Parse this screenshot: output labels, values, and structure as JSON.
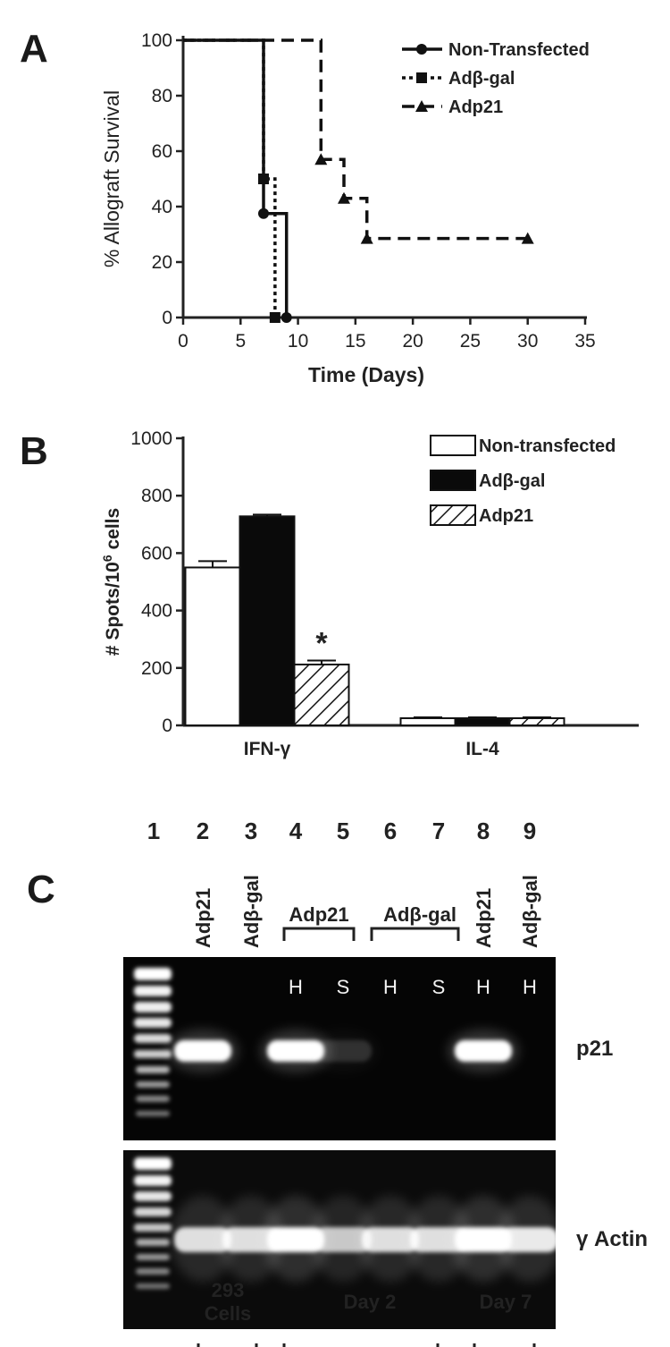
{
  "panels": {
    "A": "A",
    "B": "B",
    "C": "C"
  },
  "chart_data": [
    {
      "panel": "A",
      "type": "line",
      "step": true,
      "xlabel": "Time (Days)",
      "ylabel": "% Allograft Survival",
      "xlim": [
        0,
        35
      ],
      "ylim": [
        0,
        100
      ],
      "xticks": [
        0,
        5,
        10,
        15,
        20,
        25,
        30,
        35
      ],
      "yticks": [
        0,
        20,
        40,
        60,
        80,
        100
      ],
      "legend_position": "top-right",
      "series": [
        {
          "name": "Non-Transfected",
          "marker": "circle",
          "dash": "solid",
          "x": [
            0,
            7,
            9
          ],
          "y": [
            100,
            37.5,
            0
          ],
          "marker_x": [
            7,
            9
          ],
          "marker_y": [
            37.5,
            0
          ]
        },
        {
          "name": "Adβ-gal",
          "marker": "square",
          "dash": "dotted",
          "x": [
            0,
            7,
            8
          ],
          "y": [
            100,
            50,
            0
          ],
          "marker_x": [
            7,
            8
          ],
          "marker_y": [
            50,
            0
          ]
        },
        {
          "name": "Adp21",
          "marker": "triangle",
          "dash": "dashed",
          "x": [
            0,
            12,
            14,
            16,
            30
          ],
          "y": [
            100,
            57,
            43,
            28.5,
            28.5
          ],
          "marker_x": [
            12,
            14,
            16,
            30
          ],
          "marker_y": [
            57,
            43,
            28.5,
            28.5
          ]
        }
      ]
    },
    {
      "panel": "B",
      "type": "bar",
      "ylabel_main": "# Spots/10",
      "ylabel_sup": "6",
      "ylabel_tail": " cells",
      "ylim": [
        0,
        1000
      ],
      "yticks": [
        0,
        200,
        400,
        600,
        800,
        1000
      ],
      "categories": [
        "IFN-γ",
        "IL-4"
      ],
      "legend_position": "top-right",
      "series": [
        {
          "name": "Non-transfected",
          "fill": "white",
          "values": [
            550,
            25
          ],
          "errors": [
            22,
            3
          ]
        },
        {
          "name": "Adβ-gal",
          "fill": "black",
          "values": [
            728,
            25
          ],
          "errors": [
            6,
            3
          ]
        },
        {
          "name": "Adp21",
          "fill": "hatch",
          "values": [
            212,
            25
          ],
          "errors": [
            14,
            3
          ]
        }
      ],
      "annotations": [
        {
          "text": "*",
          "category": "IFN-γ",
          "series": "Adp21"
        }
      ]
    }
  ],
  "gel": {
    "lane_numbers": [
      "1",
      "2",
      "3",
      "4",
      "5",
      "6",
      "7",
      "8",
      "9"
    ],
    "lane_labels": {
      "l2": "Adp21",
      "l3": "Adβ-gal",
      "l8": "Adp21",
      "l9": "Adβ-gal"
    },
    "group_labels": {
      "g1": "Adp21",
      "g2": "Adβ-gal"
    },
    "tissue": {
      "l4": "H",
      "l5": "S",
      "l6": "H",
      "l7": "S",
      "l8": "H",
      "l9": "H"
    },
    "band_labels": {
      "top": "p21",
      "bottom": "γ Actin"
    },
    "bottom_labels": {
      "b1_line1": "293",
      "b1_line2": "Cells",
      "b2": "Day 2",
      "b3": "Day 7"
    },
    "p21_bands": [
      0,
      1,
      0,
      1,
      0.15,
      0,
      0,
      1,
      0
    ],
    "actin_bands": [
      0,
      0.85,
      0.85,
      1,
      0.75,
      0.85,
      0.85,
      1,
      0.9
    ]
  }
}
